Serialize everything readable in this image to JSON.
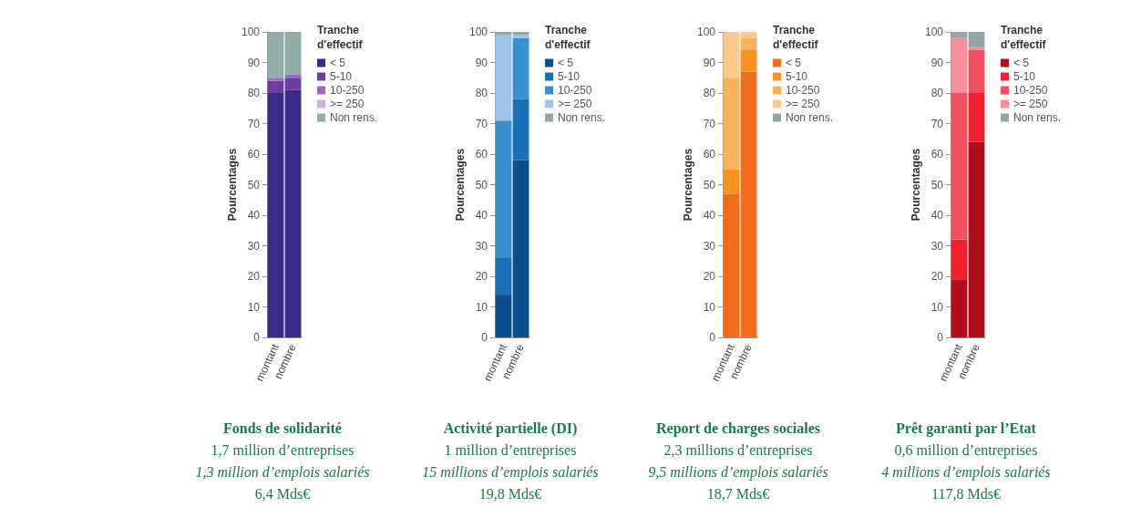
{
  "chart_data": [
    {
      "type": "bar",
      "title": "Fonds de solidarité",
      "annotations": [
        "1,7 million d’entreprises",
        "1,3 million d’emplois salariés",
        "6,4 Mds€"
      ],
      "ylabel": "Pourcentages",
      "legend_title": "Tranche\nd'effectif",
      "legend": "top right",
      "grid": false,
      "stacked": true,
      "ylim": [
        0,
        100
      ],
      "yticks": [
        0,
        10,
        20,
        30,
        40,
        50,
        60,
        70,
        80,
        90,
        100
      ],
      "categories": [
        "montant",
        "nombre"
      ],
      "series": [
        {
          "name": "< 5",
          "color": "#3b2a8a",
          "values": [
            80,
            81
          ]
        },
        {
          "name": "5-10",
          "color": "#6a3fa0",
          "values": [
            4,
            4
          ]
        },
        {
          "name": "10-250",
          "color": "#9a6bbf",
          "values": [
            1,
            1
          ]
        },
        {
          "name": ">= 250",
          "color": "#c9b6dc",
          "values": [
            0,
            0
          ]
        },
        {
          "name": "Non rens.",
          "color": "#95aba8",
          "values": [
            15,
            14
          ]
        }
      ]
    },
    {
      "type": "bar",
      "title": "Activité partielle (DI)",
      "annotations": [
        "1 million d’entreprises",
        "15 millions d’emplois salariés",
        "19,8 Mds€"
      ],
      "ylabel": "Pourcentages",
      "legend_title": "Tranche\nd'effectif",
      "legend": "top right",
      "grid": false,
      "stacked": true,
      "ylim": [
        0,
        100
      ],
      "yticks": [
        0,
        10,
        20,
        30,
        40,
        50,
        60,
        70,
        80,
        90,
        100
      ],
      "categories": [
        "montant",
        "nombre"
      ],
      "series": [
        {
          "name": "< 5",
          "color": "#0b4f8f",
          "values": [
            14,
            58
          ]
        },
        {
          "name": "5-10",
          "color": "#1a6fb5",
          "values": [
            12,
            20
          ]
        },
        {
          "name": "10-250",
          "color": "#3a8fce",
          "values": [
            45,
            20
          ]
        },
        {
          "name": ">= 250",
          "color": "#9cc3ea",
          "values": [
            28,
            1
          ]
        },
        {
          "name": "Non rens.",
          "color": "#95a5a6",
          "values": [
            1,
            1
          ]
        }
      ]
    },
    {
      "type": "bar",
      "title": "Report de charges sociales",
      "annotations": [
        "2,3 millions d’entreprises",
        "9,5 millions d’emplois salariés",
        "18,7 Mds€"
      ],
      "ylabel": "Pourcentages",
      "legend_title": "Tranche\nd'effectif",
      "legend": "top right",
      "grid": false,
      "stacked": true,
      "ylim": [
        0,
        100
      ],
      "yticks": [
        0,
        10,
        20,
        30,
        40,
        50,
        60,
        70,
        80,
        90,
        100
      ],
      "categories": [
        "montant",
        "nombre"
      ],
      "series": [
        {
          "name": "< 5",
          "color": "#f26d1a",
          "values": [
            47,
            87
          ]
        },
        {
          "name": "5-10",
          "color": "#f7931e",
          "values": [
            8,
            7
          ]
        },
        {
          "name": "10-250",
          "color": "#f9b25c",
          "values": [
            30,
            4
          ]
        },
        {
          "name": ">= 250",
          "color": "#fbc98b",
          "values": [
            15,
            2
          ]
        },
        {
          "name": "Non rens.",
          "color": "#95a5a6",
          "values": [
            0,
            0
          ]
        }
      ]
    },
    {
      "type": "bar",
      "title": "Prêt garanti par l’Etat",
      "annotations": [
        "0,6 million d’entreprises",
        "4 millions d’emplois salariés",
        "117,8 Mds€"
      ],
      "ylabel": "Pourcentages",
      "legend_title": "Tranche\nd'effectif",
      "legend": "top right",
      "grid": false,
      "stacked": true,
      "ylim": [
        0,
        100
      ],
      "yticks": [
        0,
        10,
        20,
        30,
        40,
        50,
        60,
        70,
        80,
        90,
        100
      ],
      "categories": [
        "montant",
        "nombre"
      ],
      "series": [
        {
          "name": "< 5",
          "color": "#b0101e",
          "values": [
            19,
            64
          ]
        },
        {
          "name": "5-10",
          "color": "#f0202e",
          "values": [
            13,
            16
          ]
        },
        {
          "name": "10-250",
          "color": "#f25060",
          "values": [
            48,
            14
          ]
        },
        {
          "name": ">= 250",
          "color": "#f7909a",
          "values": [
            18,
            1
          ]
        },
        {
          "name": "Non rens.",
          "color": "#95a5a6",
          "values": [
            2,
            5
          ]
        }
      ]
    }
  ]
}
